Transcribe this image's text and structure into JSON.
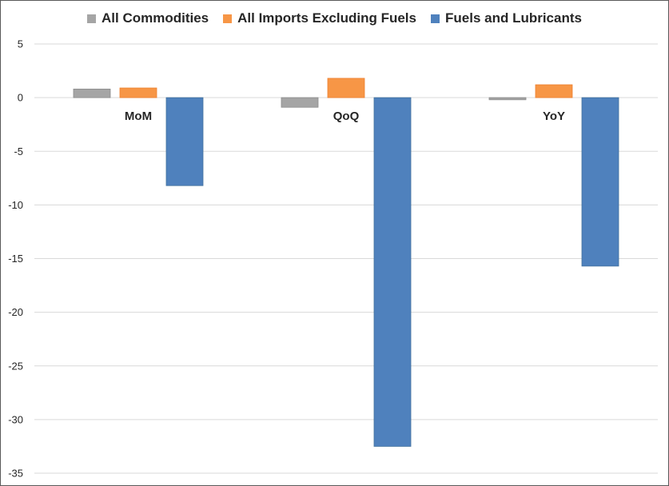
{
  "chart_data": {
    "type": "bar",
    "title": "",
    "xlabel": "",
    "ylabel": "",
    "categories": [
      "MoM",
      "QoQ",
      "YoY"
    ],
    "series": [
      {
        "name": "All Commodities",
        "values": [
          0.8,
          -0.9,
          -0.2
        ],
        "color": "#a5a5a5"
      },
      {
        "name": "All Imports Excluding Fuels",
        "values": [
          0.9,
          1.8,
          1.2
        ],
        "color": "#f79646"
      },
      {
        "name": "Fuels and Lubricants",
        "values": [
          -8.2,
          -32.5,
          -15.7
        ],
        "color": "#4f81bd"
      }
    ],
    "ylim": [
      -35,
      5
    ],
    "yticks": [
      "5",
      "0",
      "-5",
      "-10",
      "-15",
      "-20",
      "-25",
      "-30",
      "-35"
    ],
    "grid": true,
    "legend_position": "top-center"
  }
}
